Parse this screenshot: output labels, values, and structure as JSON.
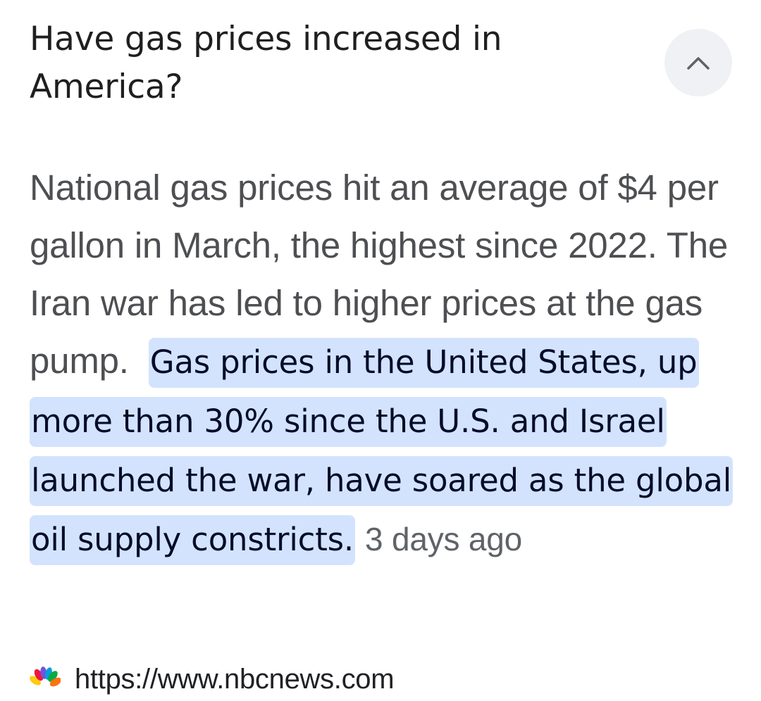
{
  "question": {
    "text": "Have gas prices increased in America?"
  },
  "collapse_button": {
    "icon": "chevron-up-icon"
  },
  "answer": {
    "plain_text": "National gas prices hit an average of $4 per gallon in March, the highest since 2022. The Iran war has led to higher prices at the gas pump.",
    "highlighted_text": "Gas prices in the United States, up more than 30% since the U.S. and Israel launched the war, have soared as the global oil supply constricts.",
    "timestamp": "3 days ago"
  },
  "source": {
    "icon": "nbc-peacock-logo",
    "url": "https://www.nbcnews.com"
  },
  "colors": {
    "highlight_background": "#d3e3fd",
    "highlight_text": "#040c28",
    "body_text": "#4e4f52",
    "button_background": "#f0f1f4"
  }
}
